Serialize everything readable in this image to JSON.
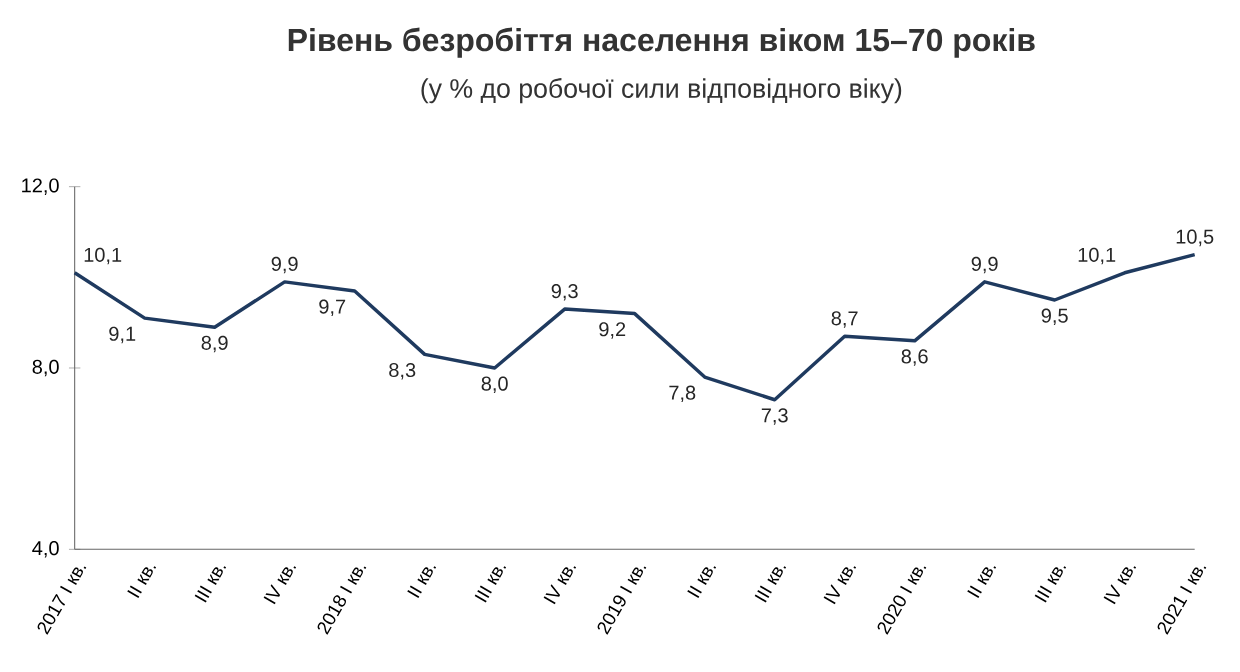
{
  "chart_data": {
    "type": "line",
    "title": "Рівень безробіття населення віком 15–70 років",
    "subtitle": "(у % до робочої сили відповідного віку)",
    "categories": [
      "2017 I кв.",
      "II кв.",
      "III кв.",
      "IV кв.",
      "2018 I кв.",
      "II кв.",
      "III кв.",
      "IV кв.",
      "2019 I кв.",
      "II кв.",
      "III кв.",
      "IV кв.",
      "2020 I кв.",
      "II кв.",
      "III кв.",
      "IV кв.",
      "2021 I кв."
    ],
    "series": [
      {
        "color": "#1f3a5f",
        "values": [
          10.1,
          9.1,
          8.9,
          9.9,
          9.7,
          8.3,
          8.0,
          9.3,
          9.2,
          7.8,
          7.3,
          8.7,
          8.6,
          9.9,
          9.5,
          10.1,
          10.5
        ],
        "value_labels": [
          "10,1",
          "9,1",
          "8,9",
          "9,9",
          "9,7",
          "8,3",
          "8,0",
          "9,3",
          "9,2",
          "7,8",
          "7,3",
          "8,7",
          "8,6",
          "9,9",
          "9,5",
          "10,1",
          "10,5"
        ]
      }
    ],
    "ylim": [
      4,
      12
    ],
    "yticks": [
      {
        "value": 4,
        "label": "4,0"
      },
      {
        "value": 8,
        "label": "8,0"
      },
      {
        "value": 12,
        "label": "12,0"
      }
    ],
    "grid": false,
    "marker": "none",
    "line_style": "solid"
  }
}
